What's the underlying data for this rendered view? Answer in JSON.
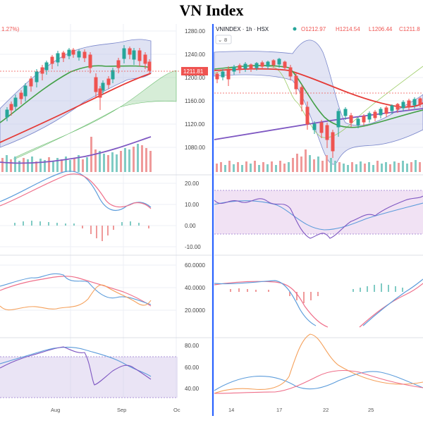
{
  "title": "VN Index",
  "left": {
    "change_pct": "1.27%)",
    "price_label": "1211.81",
    "y_ticks": [
      "1280.00",
      "1240.00",
      "1200.00",
      "1160.00",
      "1120.00",
      "1080.00"
    ],
    "ind1_ticks": [
      "20.00",
      "10.00",
      "0.00",
      "-10.00"
    ],
    "ind2_ticks": [
      "60.0000",
      "40.0000",
      "20.0000"
    ],
    "ind3_ticks": [
      "80.00",
      "60.00",
      "40.00"
    ],
    "x_ticks": [
      "Aug",
      "Sep",
      "Oc"
    ]
  },
  "right": {
    "symbol": "VNINDEX · 1h · HSX",
    "ohlc": {
      "o": "O1212.97",
      "h": "H1214.54",
      "l": "L1206.44",
      "c": "C1211.8"
    },
    "indicator_badge": "8",
    "x_ticks": [
      "14",
      "17",
      "22",
      "25"
    ]
  },
  "colors": {
    "up": "#26a69a",
    "down": "#ef5350",
    "divider": "#2962ff",
    "band": "#9fa8da",
    "ma_green": "#4caf50",
    "ma_red": "#e53935",
    "ma_purple": "#7e57c2"
  }
}
